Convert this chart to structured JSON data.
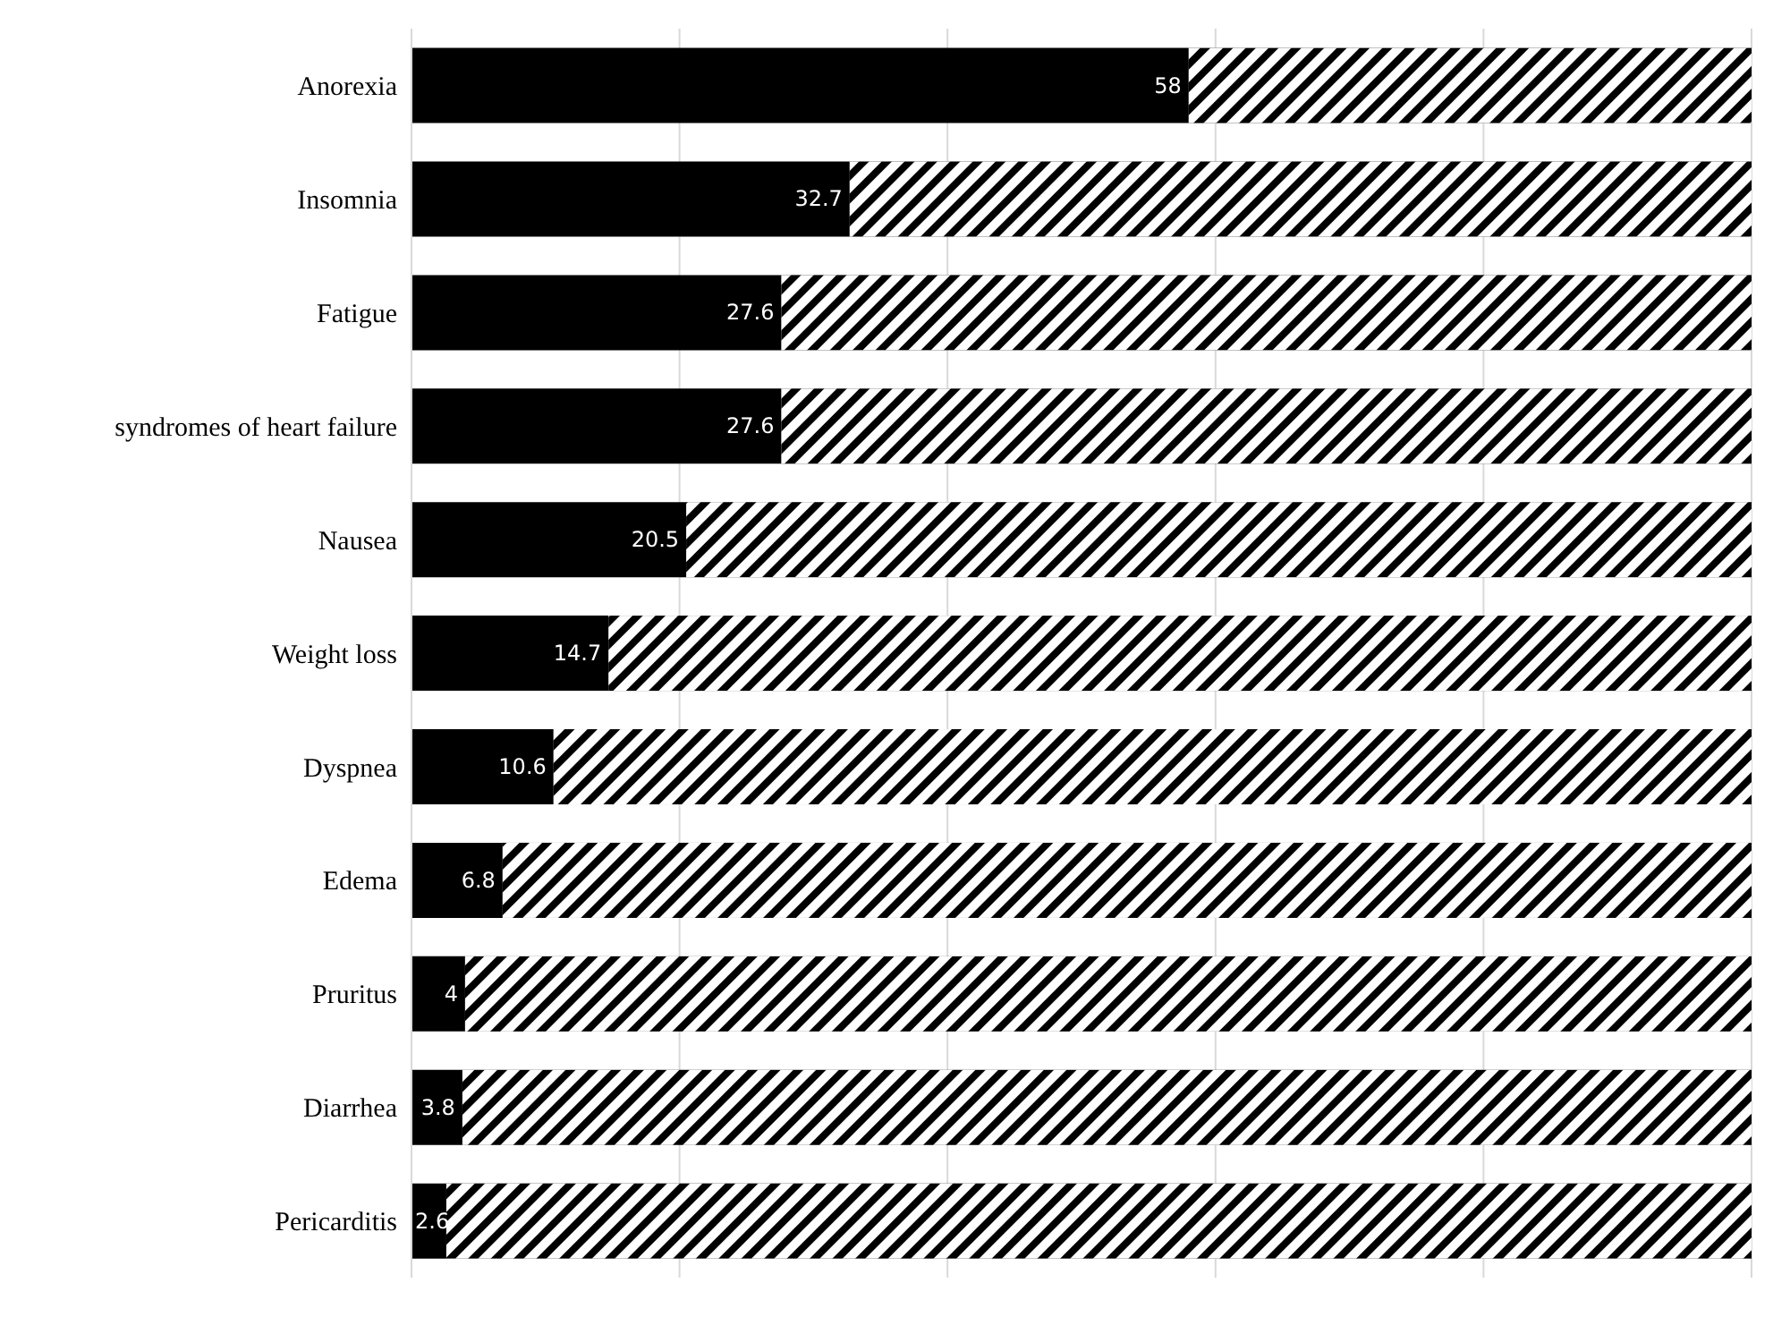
{
  "chart_data": {
    "type": "bar",
    "orientation": "horizontal",
    "stacked": true,
    "categories": [
      "Anorexia",
      "Insomnia",
      "Fatigue",
      "syndromes of heart failure",
      "Nausea",
      "Weight loss",
      "Dyspnea",
      "Edema",
      "Pruritus",
      "Diarrhea",
      "Pericarditis"
    ],
    "series": [
      {
        "color": "#000000",
        "values": [
          58,
          32.7,
          27.6,
          27.6,
          20.5,
          14.7,
          10.6,
          6.8,
          4,
          3.8,
          2.6
        ],
        "value_labels": [
          "58",
          "32.7",
          "27.6",
          "27.6",
          "20.5",
          "14.7",
          "10.6",
          "6.8",
          "4",
          "3.8",
          "2.6"
        ]
      },
      {
        "color": "#000000",
        "values": [
          42,
          67.3,
          72.4,
          72.4,
          79.5,
          85.3,
          89.4,
          93.2,
          96,
          96.2,
          97.4
        ]
      }
    ],
    "xlim": [
      0,
      100
    ],
    "xticks": [
      {
        "value": 0,
        "label": null
      },
      {
        "value": 20,
        "label": null
      },
      {
        "value": 40,
        "label": null
      },
      {
        "value": 60,
        "label": null
      },
      {
        "value": 80,
        "label": null
      },
      {
        "value": 100,
        "label": null
      }
    ],
    "grid": "x",
    "legend": false
  }
}
